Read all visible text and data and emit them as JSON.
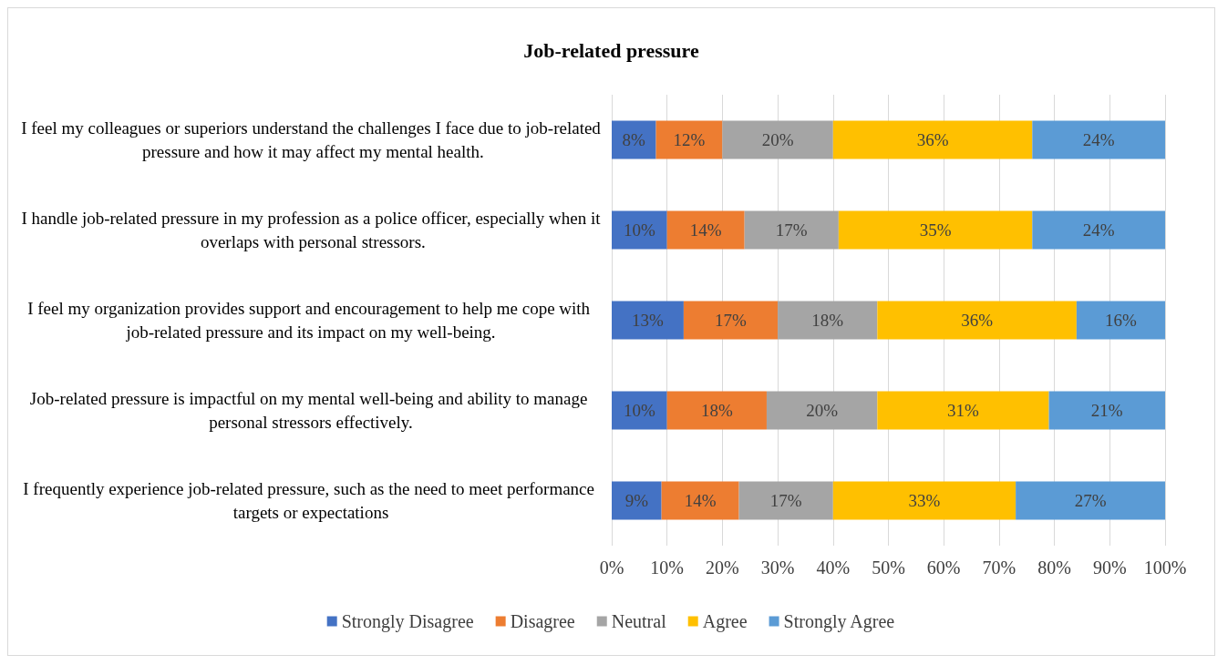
{
  "chart_data": {
    "type": "bar",
    "title": "Job-related pressure",
    "orientation": "horizontal",
    "stacked": true,
    "categories": [
      "I feel my colleagues or superiors understand the challenges I face due to job-related pressure and how it may affect my mental health.",
      "I handle job-related pressure in my profession as a police officer, especially when it overlaps with personal stressors.",
      "I feel my organization provides support and encouragement to help me cope with job-related pressure and its impact on my well-being.",
      "Job-related pressure is impactful on my mental well-being and ability to manage personal stressors effectively.",
      "I frequently experience job-related pressure, such as the need to meet performance targets or expectations"
    ],
    "series": [
      {
        "name": "Strongly Disagree",
        "color": "#4472c4",
        "values": [
          8,
          10,
          13,
          10,
          9
        ],
        "value_labels": [
          "8%",
          "10%",
          "13%",
          "10%",
          "9%"
        ]
      },
      {
        "name": "Disagree",
        "color": "#ed7d31",
        "values": [
          12,
          14,
          17,
          18,
          14
        ],
        "value_labels": [
          "12%",
          "14%",
          "17%",
          "18%",
          "14%"
        ]
      },
      {
        "name": "Neutral",
        "color": "#a5a5a5",
        "values": [
          20,
          17,
          18,
          20,
          17
        ],
        "value_labels": [
          "20%",
          "17%",
          "18%",
          "20%",
          "17%"
        ]
      },
      {
        "name": "Agree",
        "color": "#ffc000",
        "values": [
          36,
          35,
          36,
          31,
          33
        ],
        "value_labels": [
          "36%",
          "35%",
          "36%",
          "31%",
          "33%"
        ]
      },
      {
        "name": "Strongly Agree",
        "color": "#5b9bd5",
        "values": [
          24,
          24,
          16,
          21,
          27
        ],
        "value_labels": [
          "24%",
          "24%",
          "16%",
          "21%",
          "27%"
        ]
      }
    ],
    "xlim": [
      0,
      100
    ],
    "xticks": [
      {
        "value": 0,
        "label": "0%"
      },
      {
        "value": 10,
        "label": "10%"
      },
      {
        "value": 20,
        "label": "20%"
      },
      {
        "value": 30,
        "label": "30%"
      },
      {
        "value": 40,
        "label": "40%"
      },
      {
        "value": 50,
        "label": "50%"
      },
      {
        "value": 60,
        "label": "60%"
      },
      {
        "value": 70,
        "label": "70%"
      },
      {
        "value": 80,
        "label": "80%"
      },
      {
        "value": 90,
        "label": "90%"
      },
      {
        "value": 100,
        "label": "100%"
      }
    ],
    "grid": "x",
    "legend": "bottom"
  }
}
